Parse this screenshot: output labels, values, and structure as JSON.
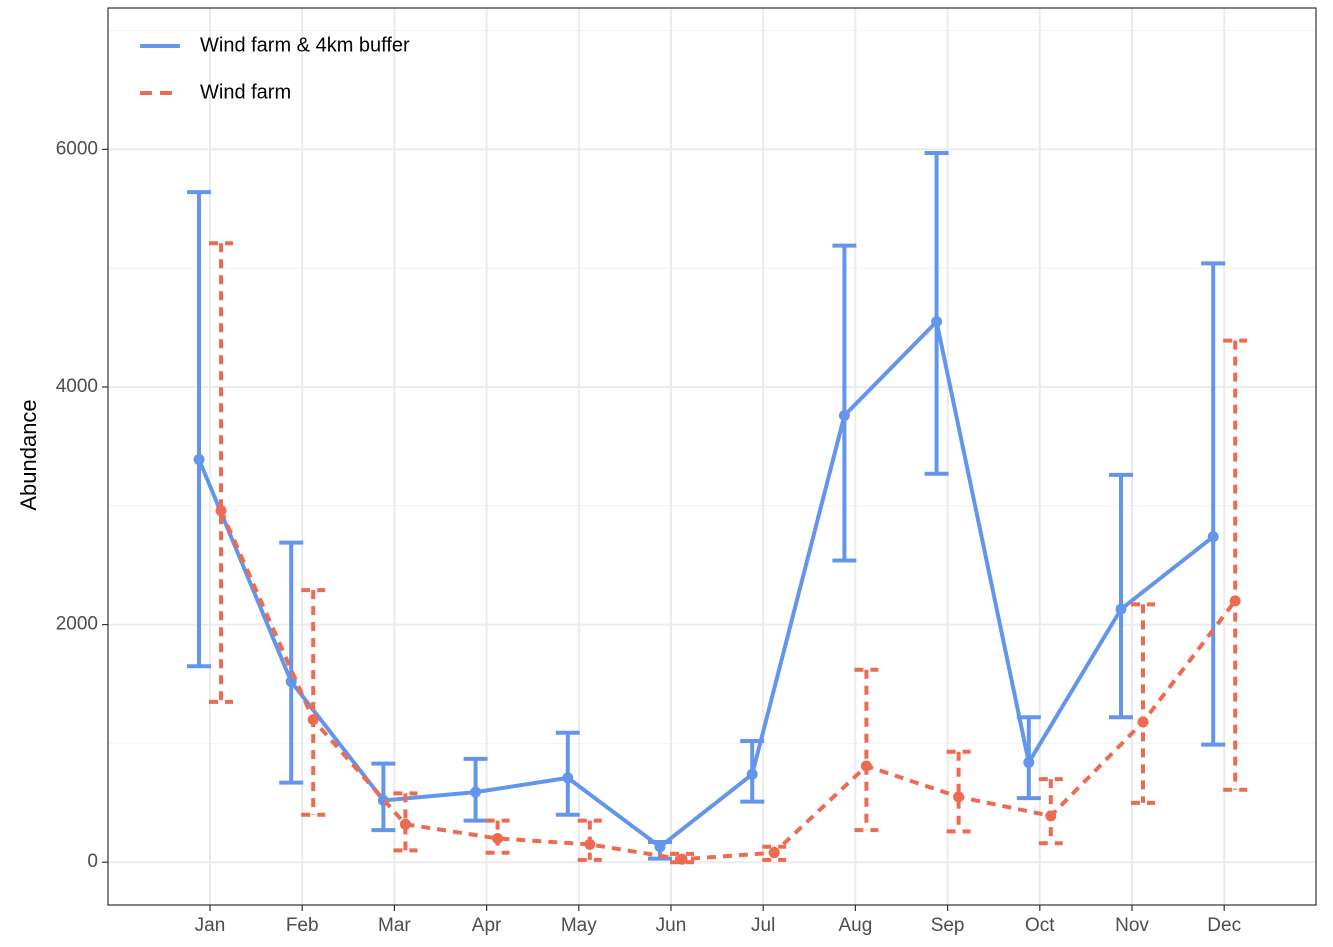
{
  "chart_data": {
    "type": "line",
    "ylabel": "Abundance",
    "categories": [
      "Jan",
      "Feb",
      "Mar",
      "Apr",
      "May",
      "Jun",
      "Jul",
      "Aug",
      "Sep",
      "Oct",
      "Nov",
      "Dec"
    ],
    "series": [
      {
        "name": "Wind farm & 4km buffer",
        "color": "#6495ED",
        "dash": false,
        "values": [
          3390,
          1520,
          520,
          590,
          710,
          130,
          740,
          3760,
          4550,
          840,
          2130,
          2740
        ],
        "lower": [
          1650,
          670,
          270,
          350,
          400,
          30,
          510,
          2540,
          3270,
          540,
          1220,
          990
        ],
        "upper": [
          5640,
          2690,
          830,
          870,
          1090,
          170,
          1020,
          5190,
          5970,
          1220,
          3260,
          5040
        ]
      },
      {
        "name": "Wind farm",
        "color": "#EE6A50",
        "dash": true,
        "values": [
          2960,
          1200,
          320,
          200,
          150,
          25,
          80,
          810,
          550,
          390,
          1180,
          2200
        ],
        "lower": [
          1350,
          400,
          100,
          80,
          20,
          0,
          20,
          270,
          260,
          160,
          500,
          610
        ],
        "upper": [
          5210,
          2290,
          580,
          350,
          350,
          70,
          130,
          1620,
          930,
          700,
          2170,
          4390
        ]
      }
    ],
    "ylim": [
      -360,
      7190
    ],
    "yticks": [
      0,
      2000,
      4000,
      6000
    ],
    "grid": true,
    "legend": "top-left"
  }
}
